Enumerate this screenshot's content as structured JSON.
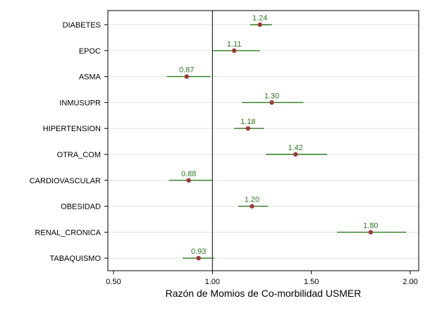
{
  "chart_data": {
    "type": "scatter",
    "subtype": "forest-plot",
    "xlabel": "Razón de Momios de Co-morbilidad USMER",
    "ylabel": "",
    "xlim": [
      0.5,
      2.0
    ],
    "xticks": [
      "0.50",
      "1.00",
      "1.50",
      "2.00"
    ],
    "reference_line": 1.0,
    "grid": "horizontal",
    "colors": {
      "point": "#a0393a",
      "ci": "#2a7a1e",
      "label": "#2a7a1e",
      "grid": "#e3e3e3",
      "axis": "#000000"
    },
    "categories": [
      "DIABETES",
      "EPOC",
      "ASMA",
      "INMUSUPR",
      "HIPERTENSION",
      "OTRA_COM",
      "CARDIOVASCULAR",
      "OBESIDAD",
      "RENAL_CRONICA",
      "TABAQUISMO"
    ],
    "labels": [
      "1.24",
      "1.11",
      "0.87",
      "1.30",
      "1.18",
      "1.42",
      "0.88",
      "1.20",
      "1.80",
      "0.93"
    ],
    "values": [
      1.24,
      1.11,
      0.87,
      1.3,
      1.18,
      1.42,
      0.88,
      1.2,
      1.8,
      0.93
    ],
    "ci_low": [
      1.19,
      1.0,
      0.77,
      1.15,
      1.11,
      1.27,
      0.78,
      1.13,
      1.63,
      0.85
    ],
    "ci_high": [
      1.3,
      1.24,
      0.99,
      1.46,
      1.26,
      1.58,
      1.0,
      1.28,
      1.98,
      1.01
    ]
  }
}
